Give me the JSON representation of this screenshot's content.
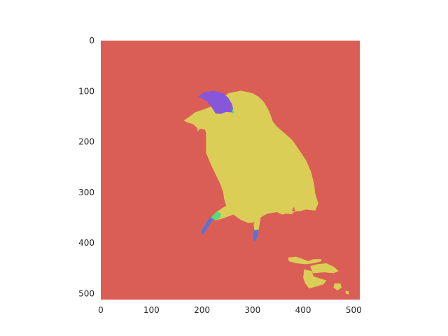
{
  "chart_data": {
    "type": "heatmap",
    "title": "",
    "xlabel": "",
    "ylabel": "",
    "xlim": [
      0,
      512
    ],
    "ylim": [
      512,
      0
    ],
    "grid": false,
    "x_ticks": [
      0,
      100,
      200,
      300,
      400,
      500
    ],
    "y_ticks": [
      0,
      100,
      200,
      300,
      400,
      500
    ],
    "colors": {
      "background_class": "#db5e56",
      "body_class": "#dbce56",
      "head_patch_class": "#8756db",
      "edge_class": "#56db7f",
      "leg_class": "#5673db"
    },
    "regions": [
      {
        "name": "bird-body",
        "color": "#dbce56",
        "points": [
          [
            186,
            142
          ],
          [
            206,
            135
          ],
          [
            226,
            127
          ],
          [
            238,
            117
          ],
          [
            252,
            104
          ],
          [
            277,
            99
          ],
          [
            300,
            104
          ],
          [
            312,
            111
          ],
          [
            323,
            122
          ],
          [
            332,
            138
          ],
          [
            336,
            148
          ],
          [
            340,
            160
          ],
          [
            348,
            170
          ],
          [
            362,
            182
          ],
          [
            378,
            196
          ],
          [
            392,
            216
          ],
          [
            406,
            237
          ],
          [
            416,
            260
          ],
          [
            422,
            286
          ],
          [
            424,
            303
          ],
          [
            430,
            322
          ],
          [
            424,
            336
          ],
          [
            406,
            334
          ],
          [
            394,
            337
          ],
          [
            384,
            338
          ],
          [
            377,
            343
          ],
          [
            366,
            342
          ],
          [
            359,
            344
          ],
          [
            348,
            339
          ],
          [
            330,
            342
          ],
          [
            320,
            347
          ],
          [
            310,
            355
          ],
          [
            300,
            360
          ],
          [
            290,
            360
          ],
          [
            276,
            354
          ],
          [
            262,
            344
          ],
          [
            254,
            335
          ],
          [
            248,
            326
          ],
          [
            244,
            314
          ],
          [
            242,
            300
          ],
          [
            236,
            283
          ],
          [
            220,
            250
          ],
          [
            208,
            222
          ],
          [
            208,
            196
          ],
          [
            208,
            182
          ],
          [
            206,
            176
          ],
          [
            196,
            174
          ],
          [
            192,
            180
          ],
          [
            190,
            172
          ],
          [
            182,
            165
          ],
          [
            172,
            162
          ],
          [
            164,
            158
          ],
          [
            176,
            150
          ]
        ]
      },
      {
        "name": "head-patch",
        "color": "#8756db",
        "points": [
          [
            192,
            110
          ],
          [
            205,
            102
          ],
          [
            223,
            99
          ],
          [
            242,
            104
          ],
          [
            252,
            113
          ],
          [
            259,
            125
          ],
          [
            262,
            136
          ],
          [
            261,
            142
          ],
          [
            248,
            141
          ],
          [
            237,
            145
          ],
          [
            227,
            144
          ],
          [
            220,
            133
          ],
          [
            210,
            120
          ],
          [
            199,
            114
          ]
        ]
      },
      {
        "name": "head-edge",
        "color": "#56db7f",
        "points": [
          [
            259,
            134
          ],
          [
            262,
            138
          ],
          [
            264,
            143
          ],
          [
            260,
            144
          ]
        ]
      },
      {
        "name": "left-leg",
        "color": "#dbce56",
        "points": [
          [
            248,
            326
          ],
          [
            262,
            344
          ],
          [
            240,
            352
          ],
          [
            228,
            355
          ],
          [
            220,
            350
          ],
          [
            230,
            338
          ]
        ]
      },
      {
        "name": "left-leg-edge",
        "color": "#56db7f",
        "points": [
          [
            218,
            349
          ],
          [
            230,
            337
          ],
          [
            238,
            343
          ],
          [
            236,
            350
          ],
          [
            226,
            356
          ]
        ]
      },
      {
        "name": "left-foot",
        "color": "#5673db",
        "points": [
          [
            216,
            350
          ],
          [
            222,
            353
          ],
          [
            214,
            366
          ],
          [
            206,
            378
          ],
          [
            200,
            384
          ],
          [
            198,
            379
          ],
          [
            204,
            368
          ],
          [
            210,
            358
          ]
        ]
      },
      {
        "name": "right-leg",
        "color": "#dbce56",
        "points": [
          [
            306,
            352
          ],
          [
            316,
            352
          ],
          [
            314,
            363
          ],
          [
            312,
            374
          ],
          [
            304,
            376
          ],
          [
            302,
            364
          ]
        ]
      },
      {
        "name": "right-foot",
        "color": "#5673db",
        "points": [
          [
            303,
            375
          ],
          [
            312,
            374
          ],
          [
            310,
            386
          ],
          [
            306,
            396
          ],
          [
            302,
            396
          ],
          [
            301,
            384
          ]
        ]
      },
      {
        "name": "fragment-1",
        "color": "#dbce56",
        "points": [
          [
            370,
            429
          ],
          [
            386,
            427
          ],
          [
            400,
            432
          ],
          [
            410,
            436
          ],
          [
            420,
            432
          ],
          [
            436,
            432
          ],
          [
            436,
            436
          ],
          [
            422,
            440
          ],
          [
            404,
            442
          ],
          [
            386,
            440
          ],
          [
            372,
            436
          ]
        ]
      },
      {
        "name": "fragment-2",
        "color": "#dbce56",
        "points": [
          [
            414,
            446
          ],
          [
            428,
            442
          ],
          [
            446,
            440
          ],
          [
            462,
            448
          ],
          [
            470,
            456
          ],
          [
            460,
            460
          ],
          [
            442,
            458
          ],
          [
            420,
            460
          ],
          [
            416,
            452
          ]
        ]
      },
      {
        "name": "fragment-3",
        "color": "#dbce56",
        "points": [
          [
            402,
            452
          ],
          [
            418,
            456
          ],
          [
            420,
            466
          ],
          [
            432,
            470
          ],
          [
            446,
            474
          ],
          [
            440,
            482
          ],
          [
            426,
            486
          ],
          [
            412,
            490
          ],
          [
            404,
            480
          ],
          [
            400,
            468
          ]
        ]
      },
      {
        "name": "fragment-4",
        "color": "#dbce56",
        "points": [
          [
            462,
            480
          ],
          [
            474,
            480
          ],
          [
            476,
            488
          ],
          [
            468,
            494
          ],
          [
            460,
            488
          ]
        ]
      },
      {
        "name": "fragment-5",
        "color": "#dbce56",
        "points": [
          [
            484,
            494
          ],
          [
            490,
            496
          ],
          [
            490,
            502
          ],
          [
            484,
            500
          ]
        ]
      },
      {
        "name": "gap-wing",
        "color": "#db5e56",
        "points": [
          [
            378,
            336
          ],
          [
            382,
            328
          ],
          [
            384,
            338
          ]
        ]
      }
    ]
  }
}
